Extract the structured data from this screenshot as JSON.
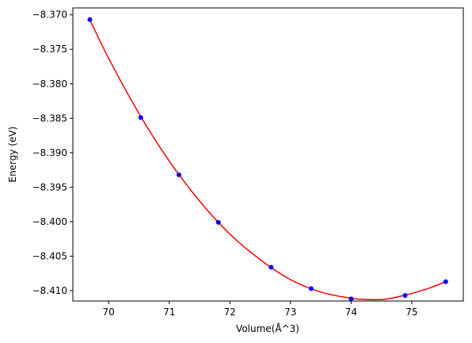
{
  "chart_data": {
    "type": "line",
    "title": "",
    "xlabel": "Volume(Å^3)",
    "ylabel": "Energy (eV)",
    "xlim": [
      69.41,
      75.85
    ],
    "ylim": [
      -8.4115,
      -8.369
    ],
    "xticks": [
      70,
      71,
      72,
      73,
      74,
      75
    ],
    "xtick_labels": [
      "70",
      "71",
      "72",
      "73",
      "74",
      "75"
    ],
    "yticks": [
      -8.37,
      -8.375,
      -8.38,
      -8.385,
      -8.39,
      -8.395,
      -8.4,
      -8.405,
      -8.41
    ],
    "ytick_labels": [
      "−8.370",
      "−8.375",
      "−8.380",
      "−8.385",
      "−8.390",
      "−8.395",
      "−8.400",
      "−8.405",
      "−8.410"
    ],
    "grid": false,
    "series": [
      {
        "kind": "scatter",
        "color": "#0000ff",
        "x": [
          69.69,
          70.53,
          71.16,
          71.81,
          72.68,
          73.34,
          74.0,
          74.89,
          75.56
        ],
        "y": [
          -8.3707,
          -8.3849,
          -8.3932,
          -8.4001,
          -8.4066,
          -8.4097,
          -8.4112,
          -8.4107,
          -8.4087
        ]
      },
      {
        "kind": "fit-curve",
        "color": "#ff0000",
        "x": [
          69.69,
          70.0,
          70.5,
          71.0,
          71.5,
          72.0,
          72.5,
          73.0,
          73.5,
          74.0,
          74.3,
          74.6,
          75.0,
          75.3,
          75.56
        ],
        "y": [
          -8.3707,
          -8.3763,
          -8.3843,
          -8.3912,
          -8.397,
          -8.4018,
          -8.4055,
          -8.4084,
          -8.4102,
          -8.4111,
          -8.4113,
          -8.4112,
          -8.4104,
          -8.4096,
          -8.4087
        ]
      }
    ]
  }
}
